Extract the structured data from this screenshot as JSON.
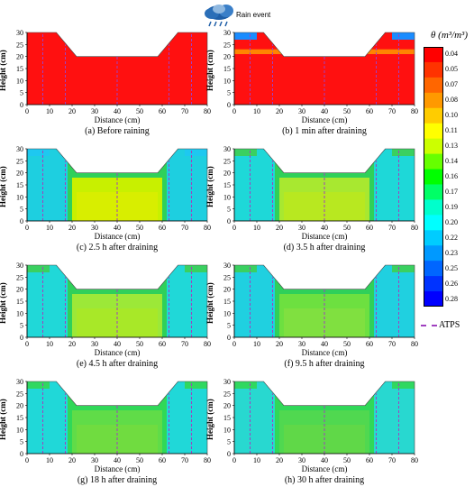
{
  "rain_label": "Rain event",
  "colorbar": {
    "title": "θ (m³/m³)",
    "ticks": [
      "0.04",
      "0.05",
      "0.07",
      "0.08",
      "0.10",
      "0.11",
      "0.13",
      "0.14",
      "0.16",
      "0.17",
      "0.19",
      "0.20",
      "0.22",
      "0.23",
      "0.25",
      "0.26",
      "0.28"
    ],
    "colors": [
      "#ff0000",
      "#ff3300",
      "#ff6600",
      "#ff9900",
      "#ffcc00",
      "#ffff00",
      "#ccff00",
      "#66ff00",
      "#00ff00",
      "#00ff66",
      "#00ffcc",
      "#00ffff",
      "#00ccff",
      "#0099ff",
      "#0066ff",
      "#0033ff",
      "#0000ff"
    ]
  },
  "atps_label": "ATPS",
  "panels": [
    {
      "caption": "(a) Before raining",
      "xlabel": "Distance (cm)",
      "ylabel": "Height (cm)"
    },
    {
      "caption": "(b) 1 min after draining",
      "xlabel": "Distance (cm)",
      "ylabel": "Height (cm)"
    },
    {
      "caption": "(c) 2.5 h after draining",
      "xlabel": "Distance (cm)",
      "ylabel": "Height (cm)"
    },
    {
      "caption": "(d) 3.5 h after draining",
      "xlabel": "Distance (cm)",
      "ylabel": "Height (cm)"
    },
    {
      "caption": "(e) 4.5 h after draining",
      "xlabel": "Distance (cm)",
      "ylabel": "Height (cm)"
    },
    {
      "caption": "(f) 9.5 h after draining",
      "xlabel": "Distance (cm)",
      "ylabel": "Height (cm)"
    },
    {
      "caption": "(g) 18 h after draining",
      "xlabel": "Distance (cm)",
      "ylabel": "Height (cm)"
    },
    {
      "caption": "(h) 30 h after draining",
      "xlabel": "Distance (cm)",
      "ylabel": "Height (cm)"
    }
  ],
  "axes": {
    "x_ticks": [
      "0",
      "10",
      "20",
      "30",
      "40",
      "50",
      "60",
      "70",
      "80"
    ],
    "y_ticks": [
      "0",
      "5",
      "10",
      "15",
      "20",
      "25",
      "30"
    ]
  }
}
